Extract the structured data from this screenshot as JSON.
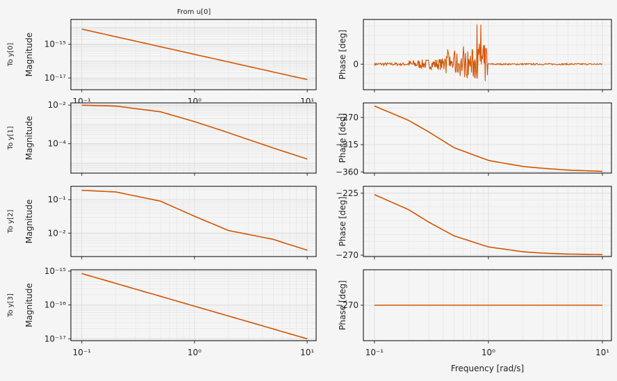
{
  "title": "From u[0]",
  "colors": {
    "line": "#d35400",
    "grid": "#dcdcdc",
    "background": "#f5f5f5"
  },
  "xlabel": "Frequency [rad/s]",
  "chart_data": [
    {
      "type": "line",
      "row": 0,
      "kind": "magnitude",
      "row_label": "To y[0]",
      "ylabel": "Magnitude",
      "xscale": "log",
      "yscale": "log",
      "x_ticks": [
        "10⁻¹",
        "10⁰",
        "10¹"
      ],
      "y_ticks": [
        "10⁻¹⁵",
        "10⁻¹⁷"
      ],
      "xlim": [
        0.08,
        12
      ],
      "ylim": [
        2e-18,
        3e-14
      ],
      "series": [
        {
          "x": [
            0.1,
            10
          ],
          "values": [
            8e-15,
            8e-18
          ]
        }
      ],
      "grid": true
    },
    {
      "type": "line",
      "row": 0,
      "kind": "phase",
      "ylabel": "Phase [deg]",
      "xscale": "log",
      "yscale": "linear",
      "y_ticks": [
        "0"
      ],
      "ylim": [
        -40,
        70
      ],
      "series": [
        {
          "x": [
            0.1,
            10
          ],
          "values": "numerical noise around 0 deg, up to about +65 / -30 deg between 0.4 and 1.0 rad/s"
        }
      ],
      "grid": true
    },
    {
      "type": "line",
      "row": 1,
      "kind": "magnitude",
      "row_label": "To y[1]",
      "ylabel": "Magnitude",
      "xscale": "log",
      "yscale": "log",
      "y_ticks": [
        "10⁻²",
        "10⁻⁴"
      ],
      "ylim": [
        3e-06,
        0.013
      ],
      "series": [
        {
          "x": [
            0.1,
            0.2,
            0.5,
            1,
            2,
            5,
            10
          ],
          "values": [
            0.0099,
            0.0089,
            0.0045,
            0.0014,
            0.00037,
            6e-05,
            1.6e-05
          ]
        }
      ],
      "grid": true
    },
    {
      "type": "line",
      "row": 1,
      "kind": "phase",
      "ylabel": "Phase [deg]",
      "xscale": "log",
      "yscale": "linear",
      "y_ticks": [
        "−270",
        "−315",
        "−360"
      ],
      "ylim": [
        -362,
        -246
      ],
      "series": [
        {
          "x": [
            0.1,
            0.2,
            0.3,
            0.5,
            1,
            2,
            3,
            5,
            10
          ],
          "values": [
            -251,
            -275,
            -294,
            -320,
            -341,
            -351,
            -354,
            -357,
            -359
          ]
        }
      ],
      "grid": true
    },
    {
      "type": "line",
      "row": 2,
      "kind": "magnitude",
      "row_label": "To y[2]",
      "ylabel": "Magnitude",
      "xscale": "log",
      "yscale": "log",
      "y_ticks": [
        "10⁻¹",
        "10⁻²"
      ],
      "ylim": [
        0.002,
        0.25
      ],
      "series": [
        {
          "x": [
            0.1,
            0.2,
            0.5,
            1,
            2,
            5,
            10
          ],
          "values": [
            0.19,
            0.17,
            0.09,
            0.032,
            0.012,
            0.0065,
            0.0031
          ]
        }
      ],
      "grid": true
    },
    {
      "type": "line",
      "row": 2,
      "kind": "phase",
      "ylabel": "Phase [deg]",
      "xscale": "log",
      "yscale": "linear",
      "y_ticks": [
        "−225",
        "−270"
      ],
      "ylim": [
        -271,
        -220
      ],
      "series": [
        {
          "x": [
            0.1,
            0.2,
            0.3,
            0.5,
            1,
            2,
            3,
            5,
            10
          ],
          "values": [
            -226,
            -237,
            -246,
            -256,
            -264,
            -267.5,
            -268.5,
            -269.2,
            -269.6
          ]
        }
      ],
      "grid": true
    },
    {
      "type": "line",
      "row": 3,
      "kind": "magnitude",
      "row_label": "To y[3]",
      "ylabel": "Magnitude",
      "xscale": "log",
      "yscale": "log",
      "x_ticks": [
        "10⁻¹",
        "10⁰",
        "10¹"
      ],
      "y_ticks": [
        "10⁻¹⁵",
        "10⁻¹⁶",
        "10⁻¹⁷"
      ],
      "ylim": [
        8.8e-18,
        1.1e-15
      ],
      "series": [
        {
          "x": [
            0.1,
            10
          ],
          "values": [
            8.5e-16,
            1e-17
          ]
        }
      ],
      "grid": true
    },
    {
      "type": "line",
      "row": 3,
      "kind": "phase",
      "ylabel": "Phase [deg]",
      "xscale": "log",
      "yscale": "linear",
      "x_ticks": [
        "10⁻¹",
        "10⁰",
        "10¹"
      ],
      "y_ticks": [
        "−270"
      ],
      "ylim": [
        -271,
        -269
      ],
      "series": [
        {
          "x": [
            0.1,
            10
          ],
          "values": [
            -270,
            -270
          ]
        }
      ],
      "grid": true
    }
  ]
}
